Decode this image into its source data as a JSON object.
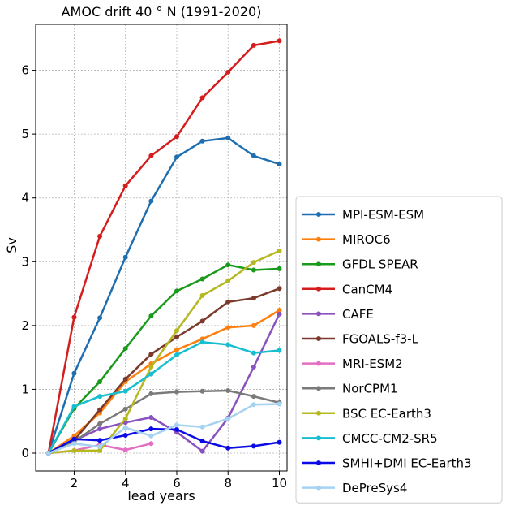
{
  "chart_data": {
    "type": "line",
    "title": "AMOC drift 40$^\\circ$N (1991-2020)",
    "title_display": "AMOC drift 40 ° N (1991-2020)",
    "xlabel": "lead years",
    "ylabel": "Sv",
    "xlim": [
      0.5,
      10.3
    ],
    "ylim": [
      -0.28,
      6.72
    ],
    "xticks": [
      2,
      4,
      6,
      8,
      10
    ],
    "xtick_labels": [
      "2",
      "4",
      "6",
      "8",
      "10"
    ],
    "yticks": [
      0,
      1,
      2,
      3,
      4,
      5,
      6
    ],
    "ytick_labels": [
      "0",
      "1",
      "2",
      "3",
      "4",
      "5",
      "6"
    ],
    "grid": true,
    "legend_position": "outside-right",
    "series": [
      {
        "name": "MPI-ESM-ESM",
        "color": "#1f6fb0",
        "x": [
          1,
          2,
          3,
          4,
          5,
          6,
          7,
          8,
          9,
          10
        ],
        "values": [
          0,
          1.25,
          2.12,
          3.07,
          3.95,
          4.64,
          4.89,
          4.94,
          4.66,
          4.53
        ]
      },
      {
        "name": "MIROC6",
        "color": "#ff7f0e",
        "x": [
          1,
          2,
          3,
          4,
          5,
          6,
          7,
          8,
          9,
          10
        ],
        "values": [
          0,
          0.27,
          0.63,
          1.12,
          1.4,
          1.62,
          1.79,
          1.97,
          2.0,
          2.24
        ]
      },
      {
        "name": "GFDL SPEAR",
        "color": "#1a9a1a",
        "x": [
          1,
          2,
          3,
          4,
          5,
          6,
          7,
          8,
          9,
          10
        ],
        "values": [
          0,
          0.7,
          1.12,
          1.64,
          2.15,
          2.54,
          2.73,
          2.95,
          2.87,
          2.89
        ]
      },
      {
        "name": "CanCM4",
        "color": "#d41d1d",
        "x": [
          1,
          2,
          3,
          4,
          5,
          6,
          7,
          8,
          9,
          10
        ],
        "values": [
          0,
          2.13,
          3.4,
          4.19,
          4.66,
          4.96,
          5.57,
          5.97,
          6.39,
          6.46
        ]
      },
      {
        "name": "CAFE",
        "color": "#8a52be",
        "x": [
          1,
          2,
          3,
          4,
          5,
          6,
          7,
          8,
          9,
          10
        ],
        "values": [
          0,
          0.2,
          0.38,
          0.48,
          0.56,
          0.33,
          0.03,
          0.55,
          1.35,
          2.18
        ]
      },
      {
        "name": "FGOALS-f3-L",
        "color": "#7b3a2b",
        "x": [
          1,
          2,
          3,
          4,
          5,
          6,
          7,
          8,
          9,
          10
        ],
        "values": [
          0,
          0.2,
          0.68,
          1.16,
          1.55,
          1.82,
          2.07,
          2.37,
          2.43,
          2.58
        ]
      },
      {
        "name": "MRI-ESM2",
        "color": "#e46ec2",
        "x": [
          1,
          2,
          3,
          4,
          5
        ],
        "values": [
          0,
          0.04,
          0.13,
          0.05,
          0.15
        ]
      },
      {
        "name": "NorCPM1",
        "color": "#7a7a7a",
        "x": [
          1,
          2,
          3,
          4,
          5,
          6,
          7,
          8,
          9,
          10
        ],
        "values": [
          0,
          0.18,
          0.46,
          0.69,
          0.93,
          0.96,
          0.97,
          0.98,
          0.89,
          0.79
        ]
      },
      {
        "name": "BSC EC-Earth3",
        "color": "#b5b81f",
        "x": [
          1,
          2,
          3,
          4,
          5,
          6,
          7,
          8,
          9,
          10
        ],
        "values": [
          0,
          0.04,
          0.04,
          0.54,
          1.35,
          1.92,
          2.47,
          2.7,
          2.99,
          3.17
        ]
      },
      {
        "name": "CMCC-CM2-SR5",
        "color": "#17becf",
        "x": [
          1,
          2,
          3,
          4,
          5,
          6,
          7,
          8,
          9,
          10
        ],
        "values": [
          0,
          0.73,
          0.89,
          0.97,
          1.24,
          1.54,
          1.74,
          1.7,
          1.57,
          1.61
        ]
      },
      {
        "name": "SMHI+DMI EC-Earth3",
        "color": "#0a0ae6",
        "x": [
          1,
          2,
          3,
          4,
          5,
          6,
          7,
          8,
          9,
          10
        ],
        "values": [
          0,
          0.22,
          0.2,
          0.28,
          0.38,
          0.37,
          0.19,
          0.08,
          0.11,
          0.17
        ]
      },
      {
        "name": "DePreSys4",
        "color": "#a6d2f2",
        "x": [
          1,
          2,
          3,
          4,
          5,
          6,
          7,
          8,
          9,
          10
        ],
        "values": [
          0,
          0.15,
          0.1,
          0.4,
          0.27,
          0.44,
          0.41,
          0.54,
          0.76,
          0.77
        ]
      }
    ]
  }
}
